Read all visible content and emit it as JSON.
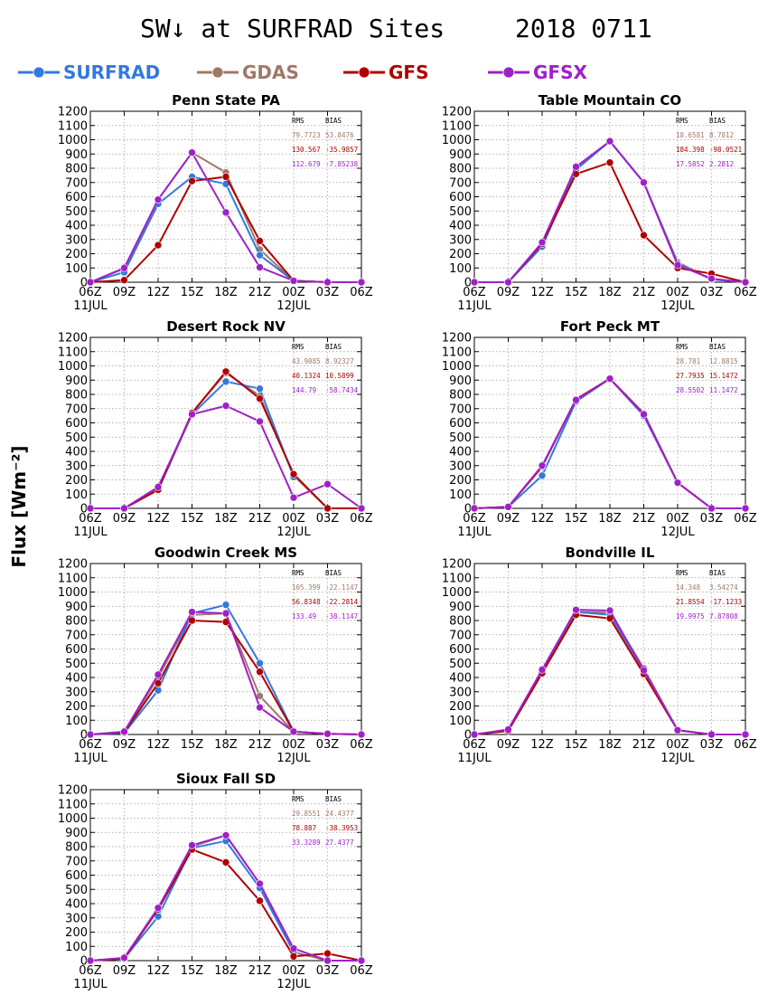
{
  "figure": {
    "title": "SW↓ at SURFRAD Sites",
    "date": "2018 0711",
    "ylabel": "Flux [Wm⁻²]"
  },
  "legend": [
    {
      "name": "SURFRAD",
      "color": "#3478e0"
    },
    {
      "name": "GDAS",
      "color": "#a07868"
    },
    {
      "name": "GFS",
      "color": "#b00000"
    },
    {
      "name": "GFSX",
      "color": "#a020c8"
    }
  ],
  "axes": {
    "x_ticks": [
      "06Z",
      "09Z",
      "12Z",
      "15Z",
      "18Z",
      "21Z",
      "00Z",
      "03Z",
      "06Z"
    ],
    "x_date_labels": [
      "11JUL",
      "12JUL"
    ],
    "y_ticks": [
      "0",
      "100",
      "200",
      "300",
      "400",
      "500",
      "600",
      "700",
      "800",
      "900",
      "1000",
      "1100",
      "1200"
    ],
    "y_range": [
      0,
      1200
    ],
    "grid": true
  },
  "stats_header": {
    "rms": "RMS",
    "bias": "BIAS"
  },
  "chart_data": [
    {
      "type": "line",
      "title": "Penn State PA",
      "categories": [
        "06Z",
        "09Z",
        "12Z",
        "15Z",
        "18Z",
        "21Z",
        "00Z",
        "03Z",
        "06Z"
      ],
      "ylim": [
        0,
        1200
      ],
      "series": [
        {
          "name": "SURFRAD",
          "values": [
            0,
            70,
            550,
            740,
            690,
            190,
            10,
            null,
            null
          ]
        },
        {
          "name": "GDAS",
          "values": [
            0,
            95,
            580,
            910,
            770,
            230,
            10,
            0,
            0
          ]
        },
        {
          "name": "GFS",
          "values": [
            0,
            15,
            260,
            710,
            740,
            290,
            10,
            0,
            0
          ]
        },
        {
          "name": "GFSX",
          "values": [
            0,
            100,
            580,
            910,
            490,
            105,
            10,
            0,
            0
          ]
        }
      ],
      "stats": [
        {
          "rms": "79.7723",
          "bias": "53.8476"
        },
        {
          "rms": "130.567",
          "bias": "-35.9857"
        },
        {
          "rms": "112.679",
          "bias": "-7.85238"
        }
      ]
    },
    {
      "type": "line",
      "title": "Table Mountain CO",
      "categories": [
        "06Z",
        "09Z",
        "12Z",
        "15Z",
        "18Z",
        "21Z",
        "00Z",
        "03Z",
        "06Z"
      ],
      "ylim": [
        0,
        1200
      ],
      "series": [
        {
          "name": "SURFRAD",
          "values": [
            0,
            0,
            250,
            790,
            990,
            700,
            130,
            20,
            0
          ]
        },
        {
          "name": "GDAS",
          "values": [
            0,
            0,
            270,
            800,
            990,
            700,
            140,
            20,
            0
          ]
        },
        {
          "name": "GFS",
          "values": [
            0,
            0,
            270,
            760,
            840,
            330,
            100,
            60,
            0
          ]
        },
        {
          "name": "GFSX",
          "values": [
            0,
            0,
            280,
            810,
            990,
            700,
            120,
            25,
            0
          ]
        }
      ],
      "stats": [
        {
          "rms": "18.6581",
          "bias": "8.7812"
        },
        {
          "rms": "184.398",
          "bias": "-98.0521"
        },
        {
          "rms": "17.5852",
          "bias": "2.2812"
        }
      ]
    },
    {
      "type": "line",
      "title": "Desert Rock NV",
      "categories": [
        "06Z",
        "09Z",
        "12Z",
        "15Z",
        "18Z",
        "21Z",
        "00Z",
        "03Z",
        "06Z"
      ],
      "ylim": [
        0,
        1200
      ],
      "series": [
        {
          "name": "SURFRAD",
          "values": [
            0,
            0,
            130,
            660,
            890,
            840,
            220,
            null,
            null
          ]
        },
        {
          "name": "GDAS",
          "values": [
            0,
            0,
            135,
            670,
            950,
            790,
            230,
            0,
            0
          ]
        },
        {
          "name": "GFS",
          "values": [
            0,
            0,
            130,
            670,
            960,
            770,
            240,
            0,
            0
          ]
        },
        {
          "name": "GFSX",
          "values": [
            0,
            0,
            150,
            660,
            720,
            610,
            75,
            170,
            0
          ]
        }
      ],
      "stats": [
        {
          "rms": "43.9085",
          "bias": "8.92327"
        },
        {
          "rms": "40.1324",
          "bias": "10.5899"
        },
        {
          "rms": "144.79",
          "bias": "-58.7434"
        }
      ]
    },
    {
      "type": "line",
      "title": "Fort Peck MT",
      "categories": [
        "06Z",
        "09Z",
        "12Z",
        "15Z",
        "18Z",
        "21Z",
        "00Z",
        "03Z",
        "06Z"
      ],
      "ylim": [
        0,
        1200
      ],
      "series": [
        {
          "name": "SURFRAD",
          "values": [
            0,
            10,
            230,
            750,
            910,
            650,
            180,
            null,
            null
          ]
        },
        {
          "name": "GDAS",
          "values": [
            0,
            10,
            290,
            765,
            910,
            665,
            180,
            0,
            0
          ]
        },
        {
          "name": "GFS",
          "values": [
            0,
            10,
            295,
            765,
            910,
            665,
            180,
            0,
            0
          ]
        },
        {
          "name": "GFSX",
          "values": [
            0,
            10,
            300,
            760,
            910,
            660,
            180,
            0,
            0
          ]
        }
      ],
      "stats": [
        {
          "rms": "28.781",
          "bias": "12.8815"
        },
        {
          "rms": "27.7935",
          "bias": "15.1472"
        },
        {
          "rms": "28.5502",
          "bias": "11.1472"
        }
      ]
    },
    {
      "type": "line",
      "title": "Goodwin Creek MS",
      "categories": [
        "06Z",
        "09Z",
        "12Z",
        "15Z",
        "18Z",
        "21Z",
        "00Z",
        "03Z",
        "06Z"
      ],
      "ylim": [
        0,
        1200
      ],
      "series": [
        {
          "name": "SURFRAD",
          "values": [
            0,
            10,
            310,
            850,
            910,
            500,
            20,
            null,
            null
          ]
        },
        {
          "name": "GDAS",
          "values": [
            0,
            15,
            400,
            840,
            850,
            270,
            20,
            5,
            0
          ]
        },
        {
          "name": "GFS",
          "values": [
            0,
            15,
            360,
            800,
            790,
            440,
            20,
            5,
            0
          ]
        },
        {
          "name": "GFSX",
          "values": [
            0,
            20,
            420,
            860,
            850,
            190,
            20,
            5,
            0
          ]
        }
      ],
      "stats": [
        {
          "rms": "105.399",
          "bias": "-22.1147"
        },
        {
          "rms": "56.8348",
          "bias": "-22.2814"
        },
        {
          "rms": "133.49",
          "bias": "-38.1147"
        }
      ]
    },
    {
      "type": "line",
      "title": "Bondville IL",
      "categories": [
        "06Z",
        "09Z",
        "12Z",
        "15Z",
        "18Z",
        "21Z",
        "00Z",
        "03Z",
        "06Z"
      ],
      "ylim": [
        0,
        1200
      ],
      "series": [
        {
          "name": "SURFRAD",
          "values": [
            0,
            30,
            440,
            860,
            840,
            450,
            30,
            null,
            null
          ]
        },
        {
          "name": "GDAS",
          "values": [
            0,
            35,
            450,
            860,
            855,
            465,
            30,
            0,
            0
          ]
        },
        {
          "name": "GFS",
          "values": [
            0,
            25,
            430,
            840,
            815,
            425,
            30,
            0,
            0
          ]
        },
        {
          "name": "GFSX",
          "values": [
            0,
            35,
            455,
            875,
            870,
            450,
            30,
            0,
            0
          ]
        }
      ],
      "stats": [
        {
          "rms": "14.348",
          "bias": "3.54274"
        },
        {
          "rms": "21.8554",
          "bias": "-17.1233"
        },
        {
          "rms": "19.9975",
          "bias": "7.87808"
        }
      ]
    },
    {
      "type": "line",
      "title": "Sioux Fall SD",
      "categories": [
        "06Z",
        "09Z",
        "12Z",
        "15Z",
        "18Z",
        "21Z",
        "00Z",
        "03Z",
        "06Z"
      ],
      "ylim": [
        0,
        1200
      ],
      "series": [
        {
          "name": "SURFRAD",
          "values": [
            0,
            15,
            310,
            790,
            840,
            510,
            60,
            null,
            null
          ]
        },
        {
          "name": "GDAS",
          "values": [
            0,
            15,
            360,
            800,
            880,
            540,
            60,
            0,
            0
          ]
        },
        {
          "name": "GFS",
          "values": [
            0,
            15,
            360,
            780,
            690,
            420,
            30,
            50,
            0
          ]
        },
        {
          "name": "GFSX",
          "values": [
            0,
            20,
            370,
            810,
            880,
            540,
            85,
            0,
            0
          ]
        }
      ],
      "stats": [
        {
          "rms": "29.8551",
          "bias": "24.4377"
        },
        {
          "rms": "78.887",
          "bias": "-38.3953"
        },
        {
          "rms": "33.3289",
          "bias": "27.4377"
        }
      ]
    }
  ]
}
